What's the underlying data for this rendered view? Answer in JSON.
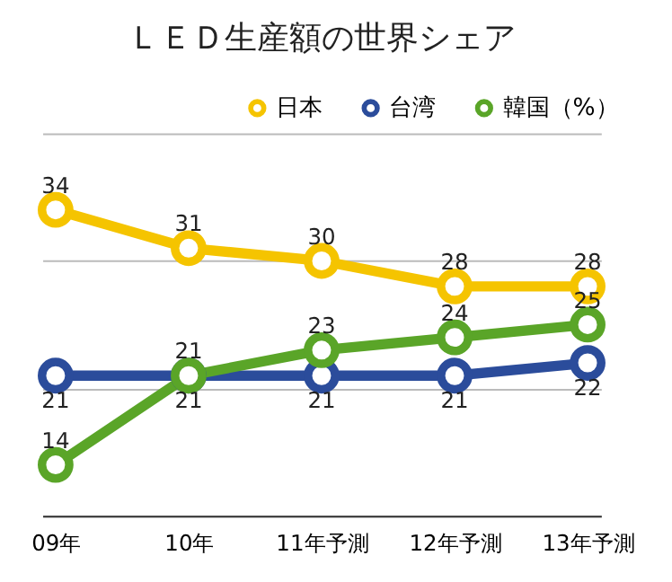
{
  "chart_data": {
    "type": "line",
    "title": "ＬＥＤ生産額の世界シェア",
    "categories": [
      "09年",
      "10年",
      "11年予測",
      "12年予測",
      "13年予測"
    ],
    "series": [
      {
        "name": "日本",
        "color": "#f5c400",
        "values": [
          34,
          31,
          30,
          28,
          28
        ]
      },
      {
        "name": "台湾",
        "color": "#2b4c9b",
        "values": [
          21,
          21,
          21,
          21,
          22
        ]
      },
      {
        "name": "韓国（%）",
        "color": "#5aa528",
        "values": [
          14,
          21,
          23,
          24,
          25
        ]
      }
    ],
    "ylim": [
      10,
      40
    ],
    "yticks": [
      {
        "value": 10,
        "label": null
      },
      {
        "value": 20,
        "label": null
      },
      {
        "value": 30,
        "label": null
      },
      {
        "value": 40,
        "label": null
      }
    ],
    "tick_labels": "x",
    "grid": "y",
    "legend": "top right",
    "marker": "circle",
    "line_style": "solid",
    "data_labels": true
  }
}
